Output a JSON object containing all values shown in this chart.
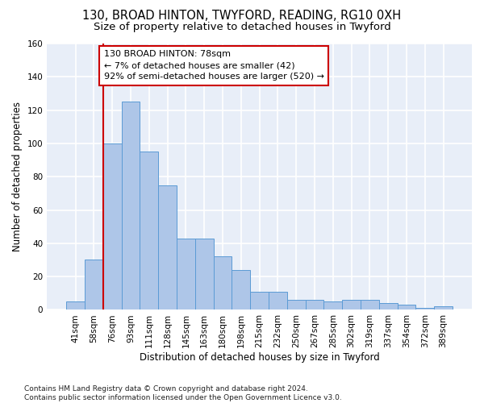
{
  "title_line1": "130, BROAD HINTON, TWYFORD, READING, RG10 0XH",
  "title_line2": "Size of property relative to detached houses in Twyford",
  "xlabel": "Distribution of detached houses by size in Twyford",
  "ylabel": "Number of detached properties",
  "categories": [
    "41sqm",
    "58sqm",
    "76sqm",
    "93sqm",
    "111sqm",
    "128sqm",
    "145sqm",
    "163sqm",
    "180sqm",
    "198sqm",
    "215sqm",
    "232sqm",
    "250sqm",
    "267sqm",
    "285sqm",
    "302sqm",
    "319sqm",
    "337sqm",
    "354sqm",
    "372sqm",
    "389sqm"
  ],
  "values": [
    5,
    30,
    100,
    125,
    95,
    75,
    43,
    43,
    32,
    24,
    11,
    11,
    6,
    6,
    5,
    6,
    6,
    4,
    3,
    1,
    2
  ],
  "bar_color": "#aec6e8",
  "bar_edgecolor": "#5b9bd5",
  "background_color": "#e8eef8",
  "grid_color": "#ffffff",
  "annotation_line1": "130 BROAD HINTON: 78sqm",
  "annotation_line2": "← 7% of detached houses are smaller (42)",
  "annotation_line3": "92% of semi-detached houses are larger (520) →",
  "annotation_box_edgecolor": "#cc0000",
  "vline_color": "#cc0000",
  "vline_x": 1.5,
  "ylim": [
    0,
    160
  ],
  "yticks": [
    0,
    20,
    40,
    60,
    80,
    100,
    120,
    140,
    160
  ],
  "footer_text": "Contains HM Land Registry data © Crown copyright and database right 2024.\nContains public sector information licensed under the Open Government Licence v3.0.",
  "title_fontsize": 10.5,
  "subtitle_fontsize": 9.5,
  "axis_label_fontsize": 8.5,
  "tick_fontsize": 7.5,
  "annotation_fontsize": 8,
  "footer_fontsize": 6.5
}
